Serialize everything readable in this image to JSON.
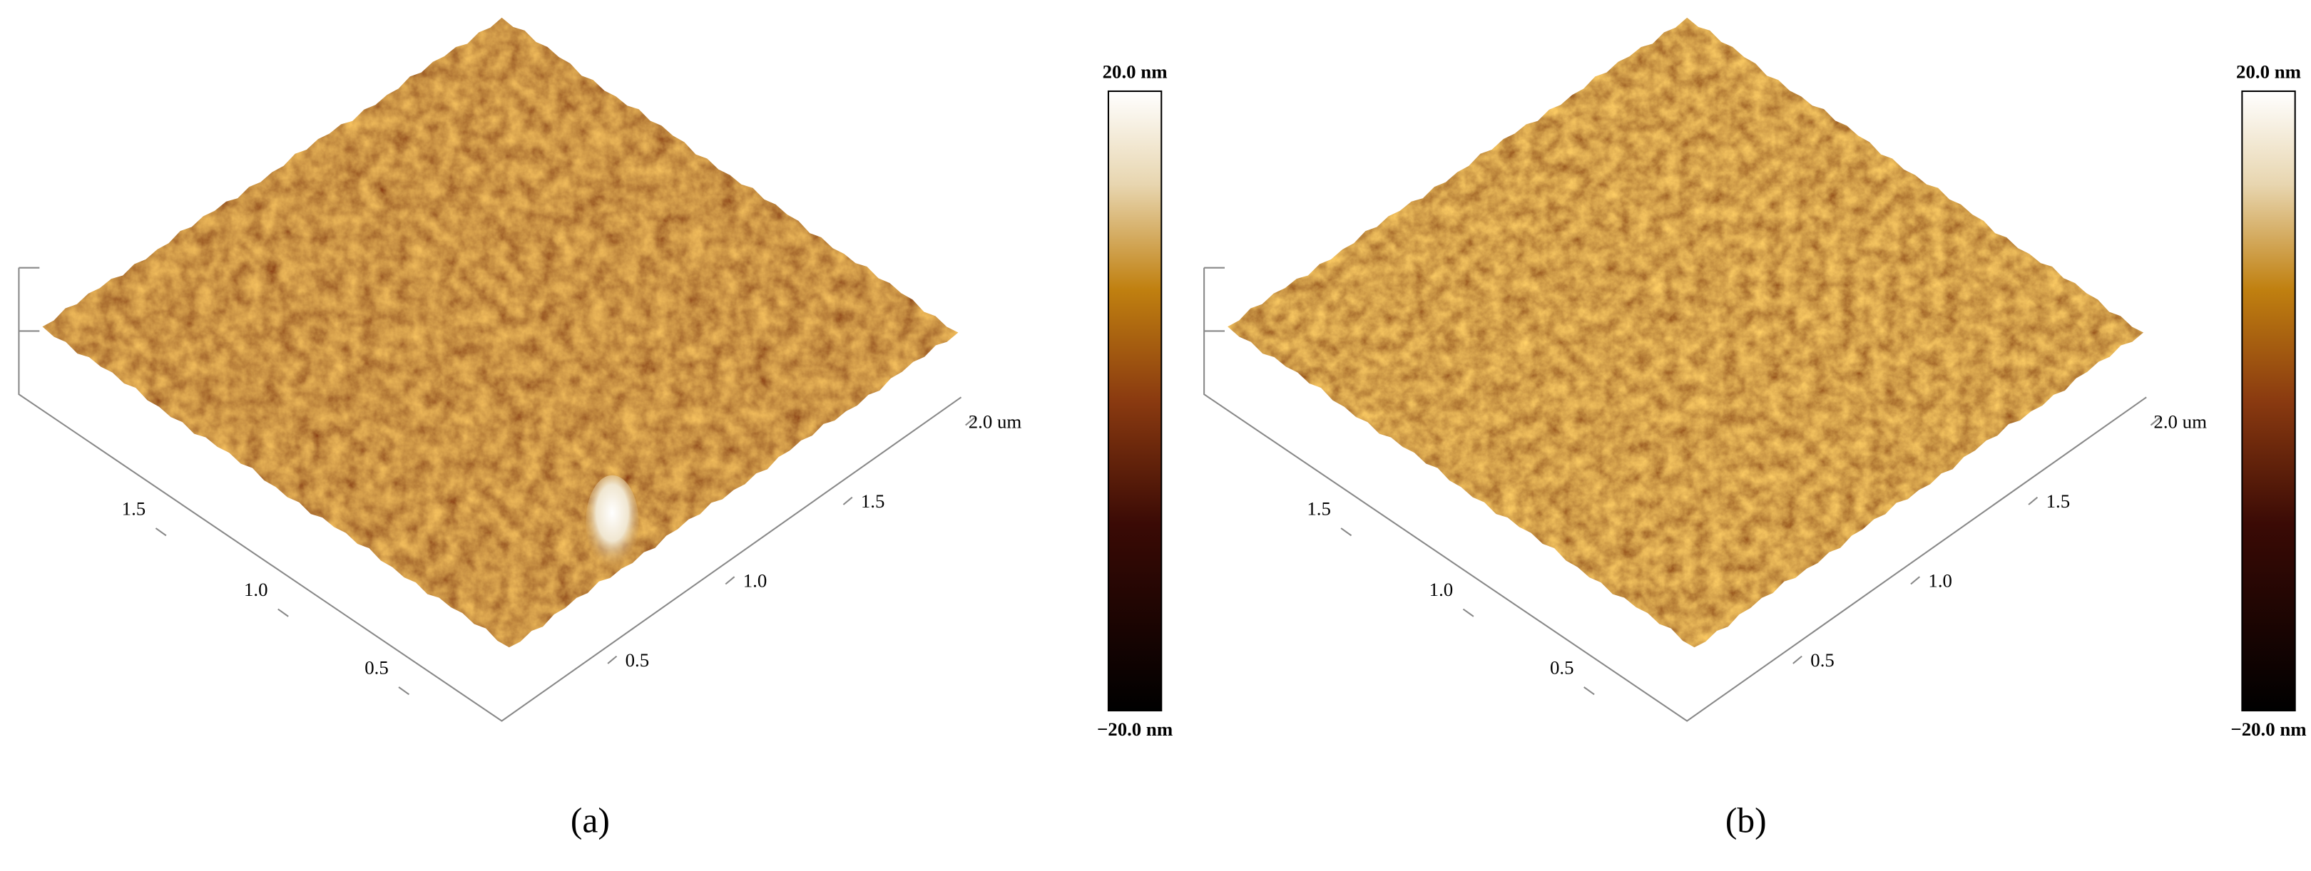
{
  "panels": [
    {
      "caption": "(a)",
      "x_ticks": [
        "0.5",
        "1.0",
        "1.5",
        "2.0 um"
      ],
      "y_ticks": [
        "0.5",
        "1.0",
        "1.5"
      ],
      "colorbar": {
        "max": "20.0 nm",
        "min": "−20.0 nm"
      }
    },
    {
      "caption": "(b)",
      "x_ticks": [
        "0.5",
        "1.0",
        "1.5",
        "2.0 um"
      ],
      "y_ticks": [
        "0.5",
        "1.0",
        "1.5"
      ],
      "colorbar": {
        "max": "20.0 nm",
        "min": "−20.0 nm"
      }
    }
  ]
}
